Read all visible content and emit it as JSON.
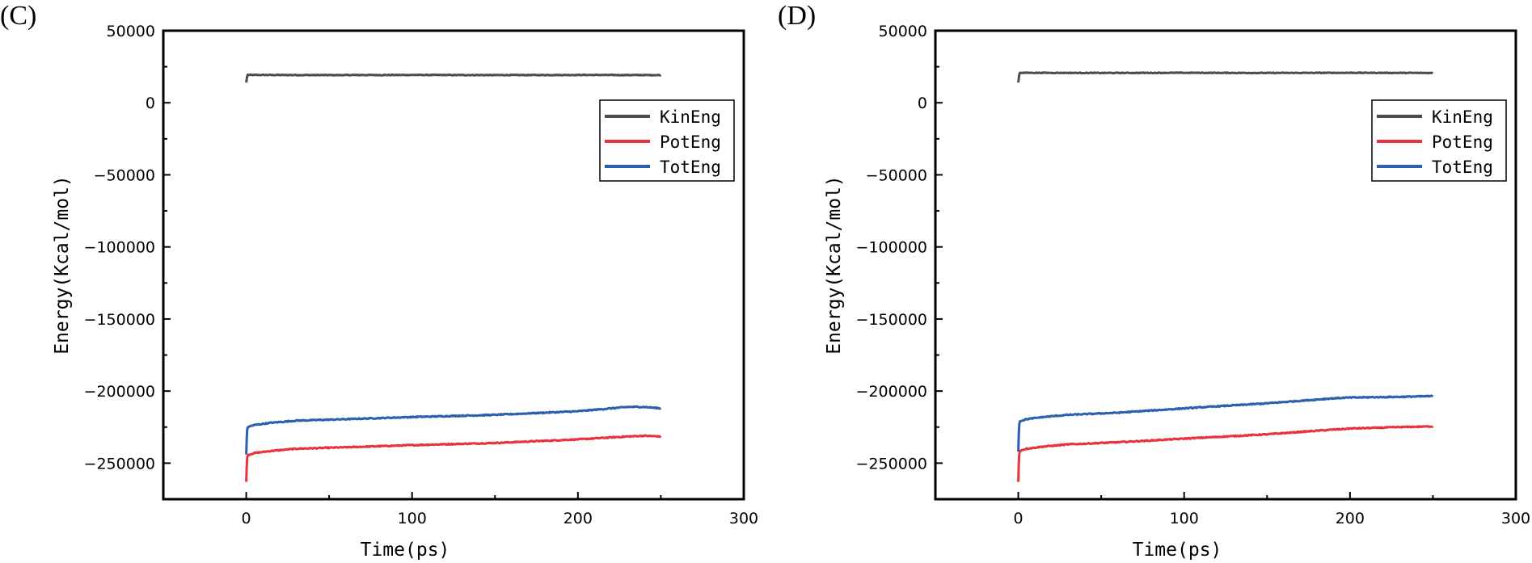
{
  "chart_data": [
    {
      "type": "line",
      "panel_label": "(C)",
      "xlabel": "Time(ps)",
      "ylabel": "Energy(Kcal/mol)",
      "xlim": [
        -50,
        300
      ],
      "ylim": [
        -275000,
        50000
      ],
      "xticks": [
        0,
        100,
        200,
        300
      ],
      "yticks": [
        50000,
        0,
        -50000,
        -100000,
        -150000,
        -200000,
        -250000
      ],
      "legend_position": "upper-right",
      "series": [
        {
          "name": "KinEng",
          "color": "#4d4d4d",
          "x": [
            0,
            0.3,
            0.6,
            1,
            2,
            10,
            50,
            100,
            150,
            200,
            250
          ],
          "y": [
            14000,
            16500,
            18500,
            19400,
            19300,
            19300,
            19200,
            19300,
            19200,
            19300,
            19200
          ]
        },
        {
          "name": "PotEng",
          "color": "#e8333c",
          "x": [
            0,
            0.3,
            0.6,
            1,
            2,
            5,
            15,
            30,
            60,
            100,
            150,
            200,
            230,
            240,
            250
          ],
          "y": [
            -263000,
            -252000,
            -246000,
            -244500,
            -244000,
            -243000,
            -241500,
            -240000,
            -239000,
            -237500,
            -236000,
            -233500,
            -231500,
            -231000,
            -231500
          ]
        },
        {
          "name": "TotEng",
          "color": "#2c5fad",
          "x": [
            0,
            0.3,
            0.6,
            1,
            2,
            5,
            15,
            30,
            60,
            100,
            150,
            200,
            230,
            240,
            250
          ],
          "y": [
            -244000,
            -233000,
            -226500,
            -225000,
            -224500,
            -223500,
            -222000,
            -220500,
            -219500,
            -218000,
            -216500,
            -214000,
            -211000,
            -211000,
            -212000
          ]
        }
      ]
    },
    {
      "type": "line",
      "panel_label": "(D)",
      "xlabel": "Time(ps)",
      "ylabel": "Energy(Kcal/mol)",
      "xlim": [
        -50,
        300
      ],
      "ylim": [
        -275000,
        50000
      ],
      "xticks": [
        0,
        100,
        200,
        300
      ],
      "yticks": [
        50000,
        0,
        -50000,
        -100000,
        -150000,
        -200000,
        -250000
      ],
      "legend_position": "upper-right",
      "series": [
        {
          "name": "KinEng",
          "color": "#4d4d4d",
          "x": [
            0,
            0.3,
            0.6,
            1,
            2,
            10,
            50,
            100,
            150,
            200,
            250
          ],
          "y": [
            14000,
            17000,
            19500,
            20800,
            20800,
            20800,
            20700,
            20800,
            20700,
            20800,
            20700
          ]
        },
        {
          "name": "PotEng",
          "color": "#e8333c",
          "x": [
            0,
            0.3,
            0.6,
            1,
            2,
            5,
            15,
            30,
            60,
            100,
            150,
            180,
            200,
            230,
            250
          ],
          "y": [
            -263000,
            -250000,
            -243500,
            -241500,
            -241000,
            -240000,
            -238500,
            -237000,
            -235500,
            -233000,
            -230000,
            -227500,
            -226000,
            -225000,
            -224500
          ]
        },
        {
          "name": "TotEng",
          "color": "#2c5fad",
          "x": [
            0,
            0.3,
            0.6,
            1,
            2,
            5,
            15,
            30,
            60,
            100,
            150,
            190,
            200,
            230,
            250
          ],
          "y": [
            -242000,
            -230000,
            -223000,
            -221000,
            -220500,
            -219500,
            -218000,
            -216500,
            -215000,
            -212000,
            -208500,
            -205000,
            -204500,
            -204000,
            -203500
          ]
        }
      ]
    }
  ]
}
